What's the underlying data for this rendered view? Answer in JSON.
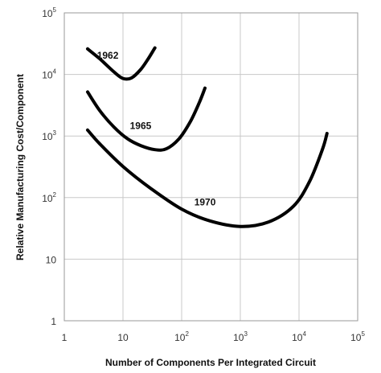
{
  "chart_data": {
    "type": "line",
    "xscale": "log",
    "yscale": "log",
    "xlim": [
      1,
      100000
    ],
    "ylim": [
      1,
      100000
    ],
    "grid": true,
    "xlabel": "Number of Components Per Integrated Circuit",
    "ylabel": "Relative Manufacturing Cost/Component",
    "x_ticks": [
      {
        "value": 1,
        "base": "1",
        "exp": ""
      },
      {
        "value": 10,
        "base": "10",
        "exp": ""
      },
      {
        "value": 100,
        "base": "10",
        "exp": "2"
      },
      {
        "value": 1000,
        "base": "10",
        "exp": "3"
      },
      {
        "value": 10000,
        "base": "10",
        "exp": "4"
      },
      {
        "value": 100000,
        "base": "10",
        "exp": "5"
      }
    ],
    "y_ticks": [
      {
        "value": 1,
        "base": "1",
        "exp": ""
      },
      {
        "value": 10,
        "base": "10",
        "exp": ""
      },
      {
        "value": 100,
        "base": "10",
        "exp": "2"
      },
      {
        "value": 1000,
        "base": "10",
        "exp": "3"
      },
      {
        "value": 10000,
        "base": "10",
        "exp": "4"
      },
      {
        "value": 100000,
        "base": "10",
        "exp": "5"
      }
    ],
    "series": [
      {
        "name": "1962",
        "label_at": [
          5.5,
          18000
        ],
        "points": [
          [
            2.5,
            26000
          ],
          [
            4,
            18000
          ],
          [
            7,
            11000
          ],
          [
            10,
            8600
          ],
          [
            14,
            8800
          ],
          [
            20,
            12000
          ],
          [
            27,
            18000
          ],
          [
            35,
            27000
          ]
        ]
      },
      {
        "name": "1965",
        "label_at": [
          20,
          1300
        ],
        "points": [
          [
            2.5,
            5200
          ],
          [
            4,
            2600
          ],
          [
            7,
            1400
          ],
          [
            12,
            900
          ],
          [
            20,
            700
          ],
          [
            35,
            600
          ],
          [
            55,
            620
          ],
          [
            90,
            900
          ],
          [
            140,
            1700
          ],
          [
            200,
            3500
          ],
          [
            250,
            6000
          ]
        ]
      },
      {
        "name": "1970",
        "label_at": [
          250,
          75
        ],
        "points": [
          [
            2.5,
            1250
          ],
          [
            4,
            750
          ],
          [
            10,
            320
          ],
          [
            30,
            140
          ],
          [
            100,
            65
          ],
          [
            300,
            42
          ],
          [
            1000,
            34
          ],
          [
            3000,
            40
          ],
          [
            8000,
            72
          ],
          [
            15000,
            180
          ],
          [
            25000,
            600
          ],
          [
            30000,
            1100
          ]
        ]
      }
    ]
  }
}
